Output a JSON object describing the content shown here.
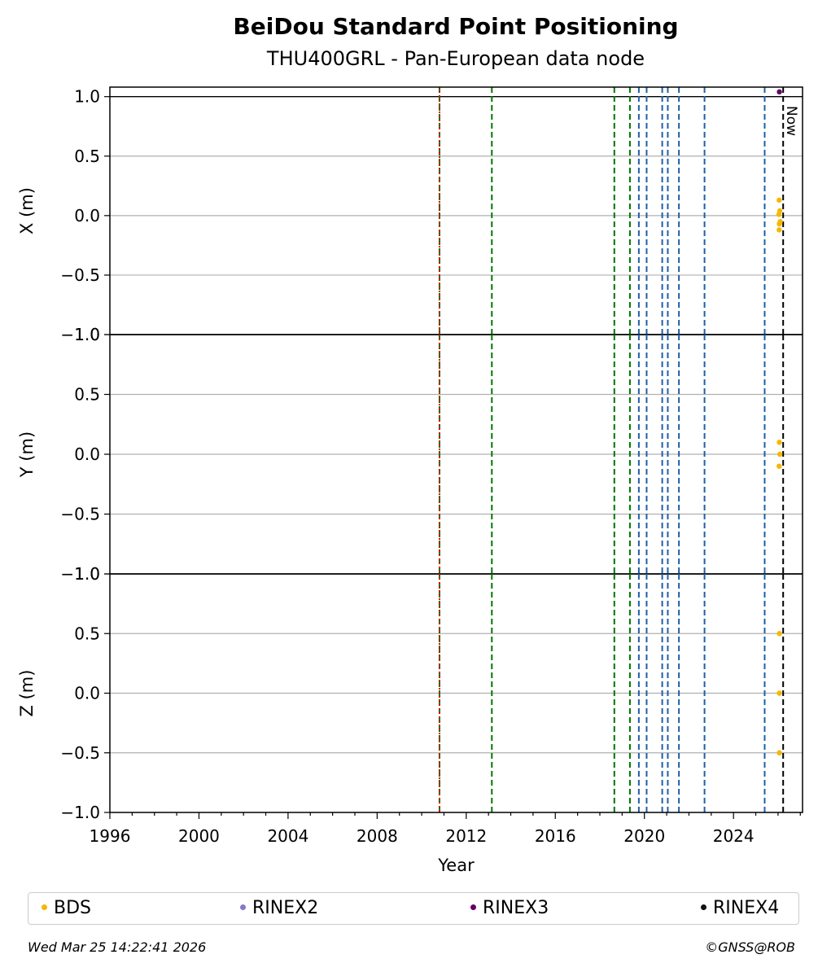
{
  "title": "BeiDou Standard Point Positioning",
  "subtitle": "THU400GRL - Pan-European data node",
  "footer": {
    "date": "Wed Mar 25 14:22:41 2026",
    "credit": "©GNSS@ROB"
  },
  "colors": {
    "BDS": "#f5b800",
    "RINEX2": "#8878c8",
    "RINEX3": "#660066",
    "RINEX4": "#111111",
    "green_event": "#007700",
    "blue_event": "#1f5fa8",
    "red_event": "#dd0000",
    "now_line": "#000000"
  },
  "legend": [
    {
      "label": "BDS",
      "color": "#f5b800"
    },
    {
      "label": "RINEX2",
      "color": "#8878c8"
    },
    {
      "label": "RINEX3",
      "color": "#660066"
    },
    {
      "label": "RINEX4",
      "color": "#111111"
    }
  ],
  "chart_data": {
    "type": "scatter",
    "xlabel": "Year",
    "xlim": [
      1996,
      2027.1
    ],
    "x_ticks": [
      "1996",
      "2000",
      "2004",
      "2008",
      "2012",
      "2016",
      "2020",
      "2024"
    ],
    "grid": true,
    "legend_position": "bottom",
    "now_label": "Now",
    "now_x": 2026.23,
    "event_lines": [
      {
        "x": 2010.8,
        "color": "green_event"
      },
      {
        "x": 2010.8,
        "color": "red_event"
      },
      {
        "x": 2013.15,
        "color": "green_event"
      },
      {
        "x": 2018.65,
        "color": "green_event"
      },
      {
        "x": 2019.35,
        "color": "green_event"
      },
      {
        "x": 2019.75,
        "color": "blue_event"
      },
      {
        "x": 2020.1,
        "color": "blue_event"
      },
      {
        "x": 2020.8,
        "color": "blue_event"
      },
      {
        "x": 2021.05,
        "color": "blue_event"
      },
      {
        "x": 2021.55,
        "color": "blue_event"
      },
      {
        "x": 2022.7,
        "color": "blue_event"
      },
      {
        "x": 2025.4,
        "color": "blue_event"
      }
    ],
    "panels": [
      {
        "ylabel": "X (m)",
        "ylim": [
          -1.0,
          1.08
        ],
        "y_ticks": [
          "−1.0",
          "−0.5",
          "0.0",
          "0.5",
          "1.0"
        ],
        "y_values": [
          -1.0,
          -0.5,
          0.0,
          0.5,
          1.0
        ],
        "series": [
          {
            "name": "BDS",
            "x": [
              2026.05,
              2026.08,
              2026.04,
              2026.1,
              2026.06,
              2026.05
            ],
            "y": [
              0.13,
              0.04,
              0.01,
              -0.05,
              -0.07,
              -0.12
            ]
          },
          {
            "name": "RINEX3",
            "x": [
              2026.06
            ],
            "y": [
              1.04
            ]
          }
        ]
      },
      {
        "ylabel": "Y (m)",
        "ylim": [
          -1.0,
          1.0
        ],
        "y_ticks": [
          "−1.0",
          "−0.5",
          "0.0",
          "0.5",
          "1.0"
        ],
        "y_values": [
          -1.0,
          -0.5,
          0.0,
          0.5,
          1.0
        ],
        "series": [
          {
            "name": "BDS",
            "x": [
              2026.06,
              2026.08,
              2026.05
            ],
            "y": [
              0.1,
              0.0,
              -0.1
            ]
          }
        ]
      },
      {
        "ylabel": "Z (m)",
        "ylim": [
          -1.0,
          1.0
        ],
        "y_ticks": [
          "−1.0",
          "−0.5",
          "0.0",
          "0.5",
          "1.0"
        ],
        "y_values": [
          -1.0,
          -0.5,
          0.0,
          0.5,
          1.0
        ],
        "series": [
          {
            "name": "BDS",
            "x": [
              2026.06,
              2026.06,
              2026.06
            ],
            "y": [
              0.5,
              0.0,
              -0.5
            ]
          }
        ]
      }
    ]
  }
}
